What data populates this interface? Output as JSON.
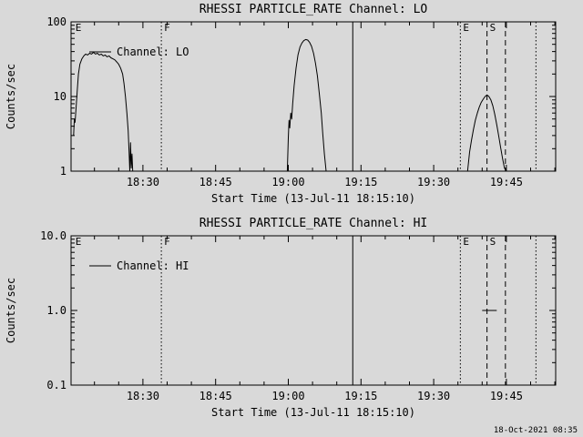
{
  "page": {
    "background": "#d9d9d9",
    "foreground": "#000000"
  },
  "timestamp": "18-Oct-2021 08:35",
  "chart_data": [
    {
      "type": "line",
      "title": "RHESSI PARTICLE_RATE Channel: LO",
      "ylabel": "Counts/sec",
      "xlabel": "Start Time (13-Jul-11 18:15:10)",
      "x_axis": {
        "unit": "minutes after 18:15:00",
        "min": 0.17,
        "max": 100.17,
        "minor_step": 5,
        "major_ticks": [
          {
            "x": 15,
            "label": "18:30"
          },
          {
            "x": 30,
            "label": "18:45"
          },
          {
            "x": 45,
            "label": "19:00"
          },
          {
            "x": 60,
            "label": "19:15"
          },
          {
            "x": 75,
            "label": "19:30"
          },
          {
            "x": 90,
            "label": "19:45"
          }
        ]
      },
      "y_axis": {
        "scale": "log",
        "min": 1,
        "max": 100,
        "ticks": [
          {
            "v": 1,
            "label": "1"
          },
          {
            "v": 10,
            "label": "10"
          },
          {
            "v": 100,
            "label": "100"
          }
        ]
      },
      "events": [
        {
          "x": 0.5,
          "label": "E",
          "style": "none"
        },
        {
          "x": 18.8,
          "label": "F",
          "style": "dotted"
        },
        {
          "x": 58.3,
          "label": "",
          "style": "solid"
        },
        {
          "x": 80.5,
          "label": "E",
          "style": "dotted"
        },
        {
          "x": 86.0,
          "label": "S",
          "style": "dashed"
        },
        {
          "x": 89.8,
          "label": "",
          "style": "dashed"
        },
        {
          "x": 96.1,
          "label": "",
          "style": "dotted"
        }
      ],
      "series": [
        {
          "name": "Channel: LO",
          "segments": [
            [
              [
                0.7,
                3
              ],
              [
                0.85,
                5
              ],
              [
                1.0,
                4.5
              ],
              [
                1.2,
                7
              ],
              [
                1.45,
                12
              ],
              [
                1.7,
                20
              ],
              [
                2.0,
                27
              ],
              [
                2.4,
                32
              ],
              [
                2.8,
                35
              ],
              [
                3.2,
                37
              ],
              [
                3.6,
                36
              ],
              [
                4.0,
                38
              ],
              [
                4.4,
                37
              ],
              [
                4.8,
                39
              ],
              [
                5.2,
                37
              ],
              [
                5.6,
                38
              ],
              [
                6.0,
                36
              ],
              [
                6.4,
                37
              ],
              [
                6.8,
                35
              ],
              [
                7.2,
                36
              ],
              [
                7.6,
                34
              ],
              [
                8.0,
                35
              ],
              [
                8.4,
                33
              ],
              [
                8.8,
                32
              ],
              [
                9.2,
                31
              ],
              [
                9.6,
                29
              ],
              [
                10.0,
                27
              ],
              [
                10.4,
                24
              ],
              [
                10.8,
                20
              ],
              [
                11.1,
                15
              ],
              [
                11.4,
                10
              ],
              [
                11.7,
                6
              ],
              [
                11.95,
                3.5
              ],
              [
                12.15,
                1.8
              ],
              [
                12.3,
                1
              ],
              [
                12.45,
                2.4
              ],
              [
                12.6,
                1.1
              ],
              [
                12.75,
                1.7
              ],
              [
                12.9,
                1
              ]
            ],
            [
              [
                44.8,
                1
              ],
              [
                45.0,
                2.8
              ],
              [
                45.15,
                4.8
              ],
              [
                45.3,
                3.8
              ],
              [
                45.5,
                6
              ],
              [
                45.7,
                5
              ],
              [
                45.9,
                8
              ],
              [
                46.2,
                14
              ],
              [
                46.6,
                24
              ],
              [
                47.0,
                36
              ],
              [
                47.4,
                46
              ],
              [
                47.8,
                52
              ],
              [
                48.2,
                56
              ],
              [
                48.6,
                58
              ],
              [
                49.0,
                57
              ],
              [
                49.4,
                53
              ],
              [
                49.8,
                47
              ],
              [
                50.2,
                38
              ],
              [
                50.6,
                28
              ],
              [
                51.0,
                19
              ],
              [
                51.4,
                11
              ],
              [
                51.8,
                6
              ],
              [
                52.1,
                3.2
              ],
              [
                52.45,
                1.7
              ],
              [
                52.8,
                1
              ]
            ],
            [
              [
                82.0,
                1
              ],
              [
                82.4,
                1.8
              ],
              [
                82.8,
                2.6
              ],
              [
                83.2,
                3.6
              ],
              [
                83.6,
                4.8
              ],
              [
                84.0,
                6
              ],
              [
                84.4,
                7.2
              ],
              [
                84.8,
                8.3
              ],
              [
                85.2,
                9.2
              ],
              [
                85.6,
                10
              ],
              [
                86.0,
                10.5
              ],
              [
                86.4,
                10
              ],
              [
                86.8,
                9
              ],
              [
                87.2,
                7.5
              ],
              [
                87.6,
                5.8
              ],
              [
                88.0,
                4.2
              ],
              [
                88.4,
                3
              ],
              [
                88.8,
                2.1
              ],
              [
                89.2,
                1.5
              ],
              [
                89.6,
                1.1
              ],
              [
                90.0,
                1
              ]
            ]
          ]
        }
      ]
    },
    {
      "type": "line",
      "title": "RHESSI PARTICLE_RATE Channel: HI",
      "ylabel": "Counts/sec",
      "xlabel": "Start Time (13-Jul-11 18:15:10)",
      "x_axis": {
        "unit": "minutes after 18:15:00",
        "min": 0.17,
        "max": 100.17,
        "minor_step": 5,
        "major_ticks": [
          {
            "x": 15,
            "label": "18:30"
          },
          {
            "x": 30,
            "label": "18:45"
          },
          {
            "x": 45,
            "label": "19:00"
          },
          {
            "x": 60,
            "label": "19:15"
          },
          {
            "x": 75,
            "label": "19:30"
          },
          {
            "x": 90,
            "label": "19:45"
          }
        ]
      },
      "y_axis": {
        "scale": "log",
        "min": 0.1,
        "max": 10,
        "ticks": [
          {
            "v": 0.1,
            "label": "0.1"
          },
          {
            "v": 1,
            "label": "1.0"
          },
          {
            "v": 10,
            "label": "10.0"
          }
        ]
      },
      "events": [
        {
          "x": 0.5,
          "label": "E",
          "style": "none"
        },
        {
          "x": 18.8,
          "label": "F",
          "style": "dotted"
        },
        {
          "x": 58.3,
          "label": "",
          "style": "solid"
        },
        {
          "x": 80.5,
          "label": "E",
          "style": "dotted"
        },
        {
          "x": 86.0,
          "label": "S",
          "style": "dashed"
        },
        {
          "x": 89.8,
          "label": "",
          "style": "dashed"
        },
        {
          "x": 96.1,
          "label": "",
          "style": "dotted"
        }
      ],
      "series": [
        {
          "name": "Channel: HI",
          "segments": [
            [
              [
                85.0,
                1.0
              ],
              [
                88.0,
                1.0
              ]
            ]
          ]
        }
      ]
    }
  ]
}
